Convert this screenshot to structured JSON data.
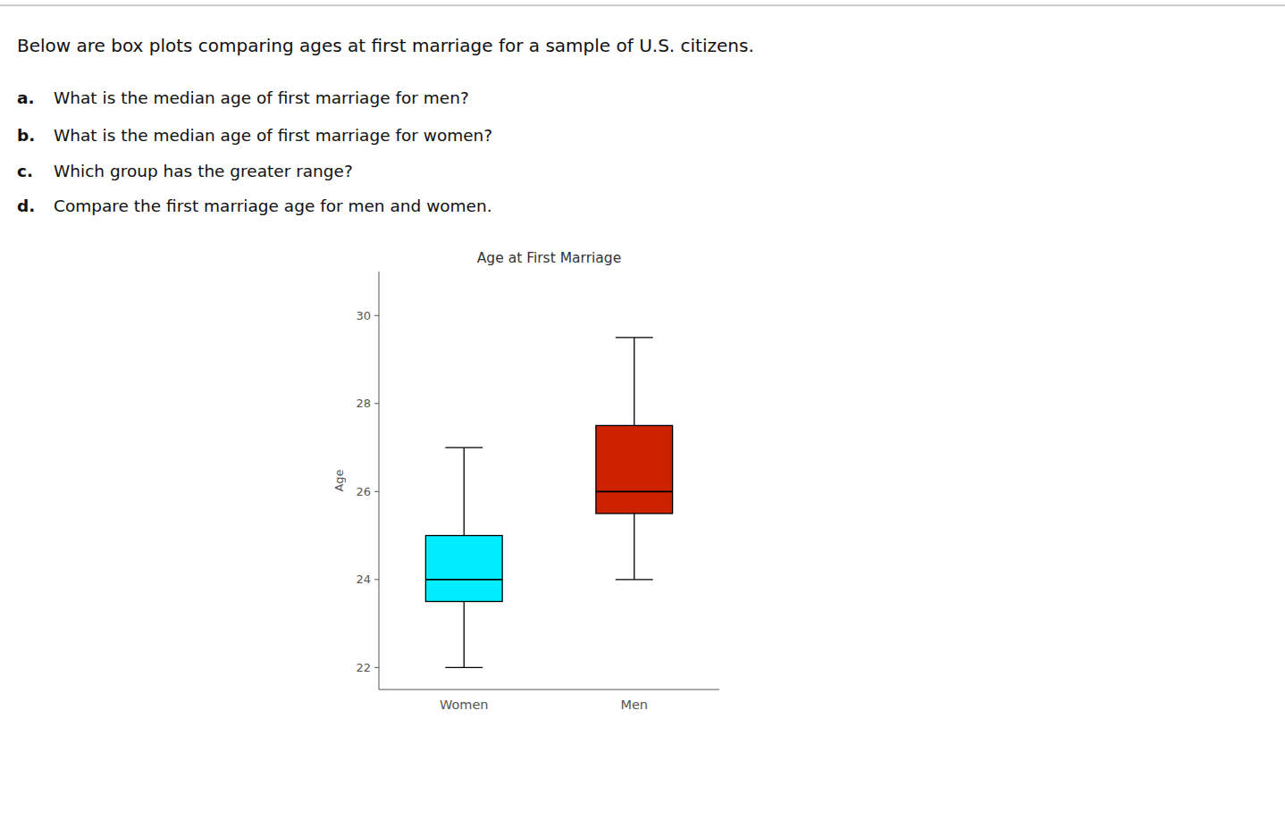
{
  "chart_data": {
    "type": "box",
    "title": "Age at First Marriage",
    "subtitle": "Below are box plots comparing ages at first marriage for a sample of U.S. citizens.",
    "annotations": [
      "a. What is the median age of first marriage for men?",
      "b. What is the median age of first marriage for women?",
      "c. Which group has the greater range?",
      "d. Compare the first marriage age for men and women."
    ],
    "ylabel": "Age",
    "categories": [
      "Women",
      "Men"
    ],
    "values": [
      {
        "whisker_low": 22,
        "q1": 23.5,
        "median": 24,
        "q3": 25,
        "whisker_high": 27
      },
      {
        "whisker_low": 24,
        "q1": 25.5,
        "median": 26,
        "q3": 27.5,
        "whisker_high": 29.5
      }
    ],
    "colors": [
      "#00EEFF",
      "#CC2200"
    ],
    "ylim": [
      21.5,
      31
    ],
    "yticks": [
      22,
      24,
      26,
      28,
      30
    ],
    "grid": false
  }
}
